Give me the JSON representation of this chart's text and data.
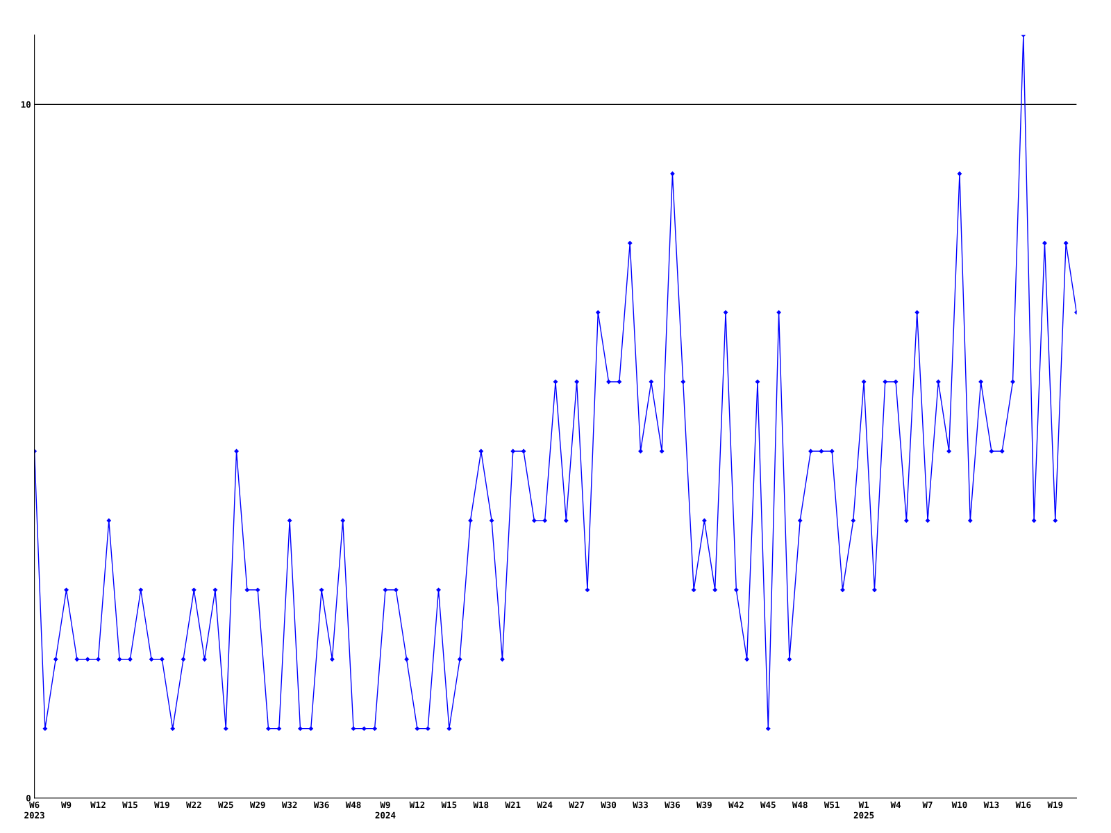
{
  "chart_data": {
    "type": "line",
    "categories": [
      "W6\n2023",
      null,
      null,
      "W9",
      null,
      null,
      "W12",
      null,
      null,
      "W15",
      null,
      null,
      "W19",
      null,
      null,
      "W22",
      null,
      null,
      "W25",
      null,
      null,
      "W29",
      null,
      null,
      "W32",
      null,
      null,
      "W36",
      null,
      null,
      "W48",
      null,
      null,
      "W9\n2024",
      null,
      null,
      "W12",
      null,
      null,
      "W15",
      null,
      null,
      "W18",
      null,
      null,
      "W21",
      null,
      null,
      "W24",
      null,
      null,
      "W27",
      null,
      null,
      "W30",
      null,
      null,
      "W33",
      null,
      null,
      "W36",
      null,
      null,
      "W39",
      null,
      null,
      "W42",
      null,
      null,
      "W45",
      null,
      null,
      "W48",
      null,
      null,
      "W51",
      null,
      null,
      "W1\n2025",
      null,
      null,
      "W4",
      null,
      null,
      "W7",
      null,
      null,
      "W10",
      null,
      null,
      "W13",
      null,
      null,
      "W16",
      null,
      null,
      "W19",
      null,
      null
    ],
    "series": [
      {
        "color": "#0000ff",
        "values": [
          5,
          1,
          2,
          3,
          2,
          2,
          2,
          4,
          2,
          2,
          3,
          2,
          2,
          1,
          2,
          3,
          2,
          3,
          1,
          5,
          3,
          3,
          1,
          1,
          4,
          1,
          1,
          3,
          2,
          4,
          1,
          1,
          1,
          3,
          3,
          2,
          1,
          1,
          3,
          1,
          2,
          4,
          5,
          4,
          2,
          5,
          5,
          4,
          4,
          6,
          4,
          6,
          3,
          7,
          6,
          6,
          8,
          5,
          6,
          5,
          9,
          6,
          3,
          4,
          3,
          7,
          3,
          2,
          6,
          1,
          7,
          2,
          4,
          5,
          5,
          5,
          3,
          4,
          6,
          3,
          6,
          6,
          4,
          7,
          4,
          6,
          5,
          9,
          4,
          6,
          5,
          5,
          6,
          11,
          4,
          8,
          4,
          8,
          7
        ]
      }
    ],
    "ylim": [
      0,
      11
    ],
    "yticks": [
      0,
      10
    ],
    "grid": "y",
    "marker": "diamond",
    "line_style": "solid"
  }
}
